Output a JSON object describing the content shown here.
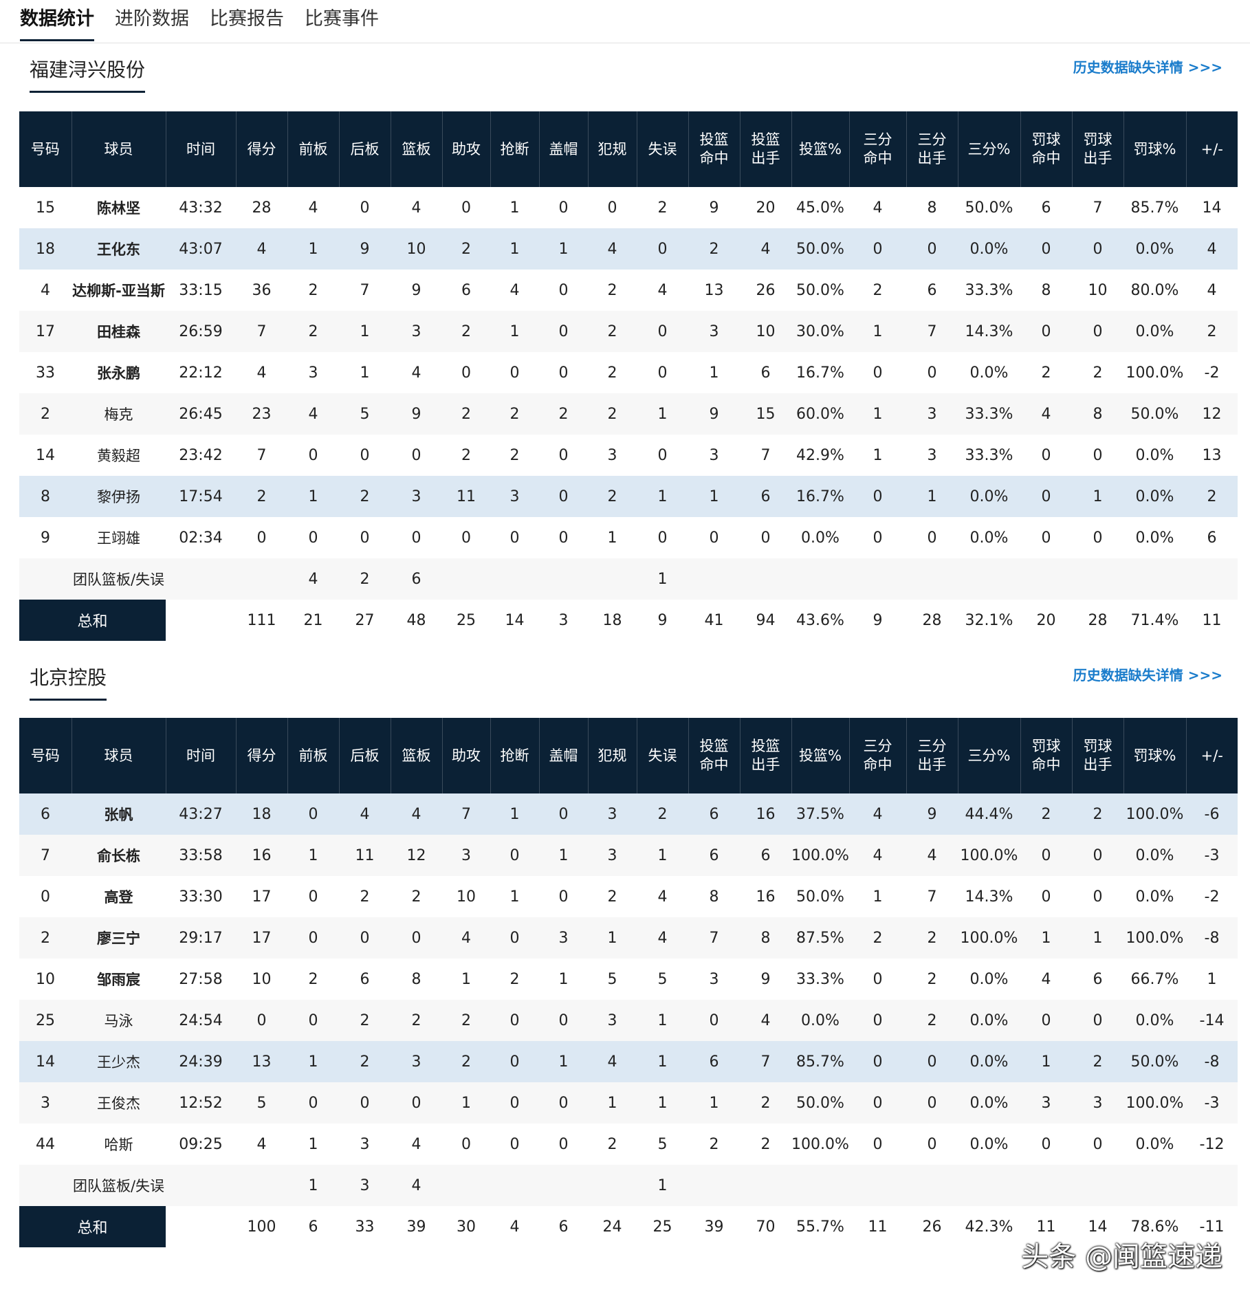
{
  "tabs": [
    "数据统计",
    "进阶数据",
    "比赛报告",
    "比赛事件"
  ],
  "history_link": "历史数据缺失详情 >>>",
  "columns": [
    "号码",
    "球员",
    "时间",
    "得分",
    "前板",
    "后板",
    "篮板",
    "助攻",
    "抢断",
    "盖帽",
    "犯规",
    "失误",
    "投篮\n命中",
    "投篮\n出手",
    "投篮%",
    "三分\n命中",
    "三分\n出手",
    "三分%",
    "罚球\n命中",
    "罚球\n出手",
    "罚球%",
    "+/-"
  ],
  "team_row_label": "团队篮板/失误",
  "total_label": "总和",
  "teams": [
    {
      "name": "福建浔兴股份",
      "players": [
        {
          "cells": [
            "15",
            "陈林坚",
            "43:32",
            "28",
            "4",
            "0",
            "4",
            "0",
            "1",
            "0",
            "0",
            "2",
            "9",
            "20",
            "45.0%",
            "4",
            "8",
            "50.0%",
            "6",
            "7",
            "85.7%",
            "14"
          ],
          "starter": true,
          "highlight": false
        },
        {
          "cells": [
            "18",
            "王化东",
            "43:07",
            "4",
            "1",
            "9",
            "10",
            "2",
            "1",
            "1",
            "4",
            "0",
            "2",
            "4",
            "50.0%",
            "0",
            "0",
            "0.0%",
            "0",
            "0",
            "0.0%",
            "4"
          ],
          "starter": true,
          "highlight": true
        },
        {
          "cells": [
            "4",
            "达柳斯-亚当斯",
            "33:15",
            "36",
            "2",
            "7",
            "9",
            "6",
            "4",
            "0",
            "2",
            "4",
            "13",
            "26",
            "50.0%",
            "2",
            "6",
            "33.3%",
            "8",
            "10",
            "80.0%",
            "4"
          ],
          "starter": true,
          "highlight": false
        },
        {
          "cells": [
            "17",
            "田桂森",
            "26:59",
            "7",
            "2",
            "1",
            "3",
            "2",
            "1",
            "0",
            "2",
            "0",
            "3",
            "10",
            "30.0%",
            "1",
            "7",
            "14.3%",
            "0",
            "0",
            "0.0%",
            "2"
          ],
          "starter": true,
          "highlight": false
        },
        {
          "cells": [
            "33",
            "张永鹏",
            "22:12",
            "4",
            "3",
            "1",
            "4",
            "0",
            "0",
            "0",
            "2",
            "0",
            "1",
            "6",
            "16.7%",
            "0",
            "0",
            "0.0%",
            "2",
            "2",
            "100.0%",
            "-2"
          ],
          "starter": true,
          "highlight": false
        },
        {
          "cells": [
            "2",
            "梅克",
            "26:45",
            "23",
            "4",
            "5",
            "9",
            "2",
            "2",
            "2",
            "2",
            "1",
            "9",
            "15",
            "60.0%",
            "1",
            "3",
            "33.3%",
            "4",
            "8",
            "50.0%",
            "12"
          ],
          "starter": false,
          "highlight": false
        },
        {
          "cells": [
            "14",
            "黄毅超",
            "23:42",
            "7",
            "0",
            "0",
            "0",
            "2",
            "2",
            "0",
            "3",
            "0",
            "3",
            "7",
            "42.9%",
            "1",
            "3",
            "33.3%",
            "0",
            "0",
            "0.0%",
            "13"
          ],
          "starter": false,
          "highlight": false
        },
        {
          "cells": [
            "8",
            "黎伊扬",
            "17:54",
            "2",
            "1",
            "2",
            "3",
            "11",
            "3",
            "0",
            "2",
            "1",
            "1",
            "6",
            "16.7%",
            "0",
            "1",
            "0.0%",
            "0",
            "1",
            "0.0%",
            "2"
          ],
          "starter": false,
          "highlight": true
        },
        {
          "cells": [
            "9",
            "王翊雄",
            "02:34",
            "0",
            "0",
            "0",
            "0",
            "0",
            "0",
            "0",
            "1",
            "0",
            "0",
            "0",
            "0.0%",
            "0",
            "0",
            "0.0%",
            "0",
            "0",
            "0.0%",
            "6"
          ],
          "starter": false,
          "highlight": false
        }
      ],
      "team_row": [
        "",
        "",
        "",
        "",
        "4",
        "2",
        "6",
        "",
        "",
        "",
        "",
        "1",
        "",
        "",
        "",
        "",
        "",
        "",
        "",
        "",
        "",
        ""
      ],
      "total": [
        "",
        "",
        "",
        "111",
        "21",
        "27",
        "48",
        "25",
        "14",
        "3",
        "18",
        "9",
        "41",
        "94",
        "43.6%",
        "9",
        "28",
        "32.1%",
        "20",
        "28",
        "71.4%",
        "11"
      ]
    },
    {
      "name": "北京控股",
      "players": [
        {
          "cells": [
            "6",
            "张帆",
            "43:27",
            "18",
            "0",
            "4",
            "4",
            "7",
            "1",
            "0",
            "3",
            "2",
            "6",
            "16",
            "37.5%",
            "4",
            "9",
            "44.4%",
            "2",
            "2",
            "100.0%",
            "-6"
          ],
          "starter": true,
          "highlight": true
        },
        {
          "cells": [
            "7",
            "俞长栋",
            "33:58",
            "16",
            "1",
            "11",
            "12",
            "3",
            "0",
            "1",
            "3",
            "1",
            "6",
            "6",
            "100.0%",
            "4",
            "4",
            "100.0%",
            "0",
            "0",
            "0.0%",
            "-3"
          ],
          "starter": true,
          "highlight": false
        },
        {
          "cells": [
            "0",
            "高登",
            "33:30",
            "17",
            "0",
            "2",
            "2",
            "10",
            "1",
            "0",
            "2",
            "4",
            "8",
            "16",
            "50.0%",
            "1",
            "7",
            "14.3%",
            "0",
            "0",
            "0.0%",
            "-2"
          ],
          "starter": true,
          "highlight": false
        },
        {
          "cells": [
            "2",
            "廖三宁",
            "29:17",
            "17",
            "0",
            "0",
            "0",
            "4",
            "0",
            "3",
            "1",
            "4",
            "7",
            "8",
            "87.5%",
            "2",
            "2",
            "100.0%",
            "1",
            "1",
            "100.0%",
            "-8"
          ],
          "starter": true,
          "highlight": false
        },
        {
          "cells": [
            "10",
            "邹雨宸",
            "27:58",
            "10",
            "2",
            "6",
            "8",
            "1",
            "2",
            "1",
            "5",
            "5",
            "3",
            "9",
            "33.3%",
            "0",
            "2",
            "0.0%",
            "4",
            "6",
            "66.7%",
            "1"
          ],
          "starter": true,
          "highlight": false
        },
        {
          "cells": [
            "25",
            "马泳",
            "24:54",
            "0",
            "0",
            "2",
            "2",
            "2",
            "0",
            "0",
            "3",
            "1",
            "0",
            "4",
            "0.0%",
            "0",
            "2",
            "0.0%",
            "0",
            "0",
            "0.0%",
            "-14"
          ],
          "starter": false,
          "highlight": false
        },
        {
          "cells": [
            "14",
            "王少杰",
            "24:39",
            "13",
            "1",
            "2",
            "3",
            "2",
            "0",
            "1",
            "4",
            "1",
            "6",
            "7",
            "85.7%",
            "0",
            "0",
            "0.0%",
            "1",
            "2",
            "50.0%",
            "-8"
          ],
          "starter": false,
          "highlight": true
        },
        {
          "cells": [
            "3",
            "王俊杰",
            "12:52",
            "5",
            "0",
            "0",
            "0",
            "1",
            "0",
            "0",
            "1",
            "1",
            "1",
            "2",
            "50.0%",
            "0",
            "0",
            "0.0%",
            "3",
            "3",
            "100.0%",
            "-3"
          ],
          "starter": false,
          "highlight": false
        },
        {
          "cells": [
            "44",
            "哈斯",
            "09:25",
            "4",
            "1",
            "3",
            "4",
            "0",
            "0",
            "0",
            "2",
            "5",
            "2",
            "2",
            "100.0%",
            "0",
            "0",
            "0.0%",
            "0",
            "0",
            "0.0%",
            "-12"
          ],
          "starter": false,
          "highlight": false
        }
      ],
      "team_row": [
        "",
        "",
        "",
        "",
        "1",
        "3",
        "4",
        "",
        "",
        "",
        "",
        "1",
        "",
        "",
        "",
        "",
        "",
        "",
        "",
        "",
        "",
        ""
      ],
      "total": [
        "",
        "",
        "",
        "100",
        "6",
        "33",
        "39",
        "30",
        "4",
        "6",
        "24",
        "25",
        "39",
        "70",
        "55.7%",
        "11",
        "26",
        "42.3%",
        "11",
        "14",
        "78.6%",
        "-11"
      ]
    }
  ],
  "watermark": "头条 @闽篮速递"
}
